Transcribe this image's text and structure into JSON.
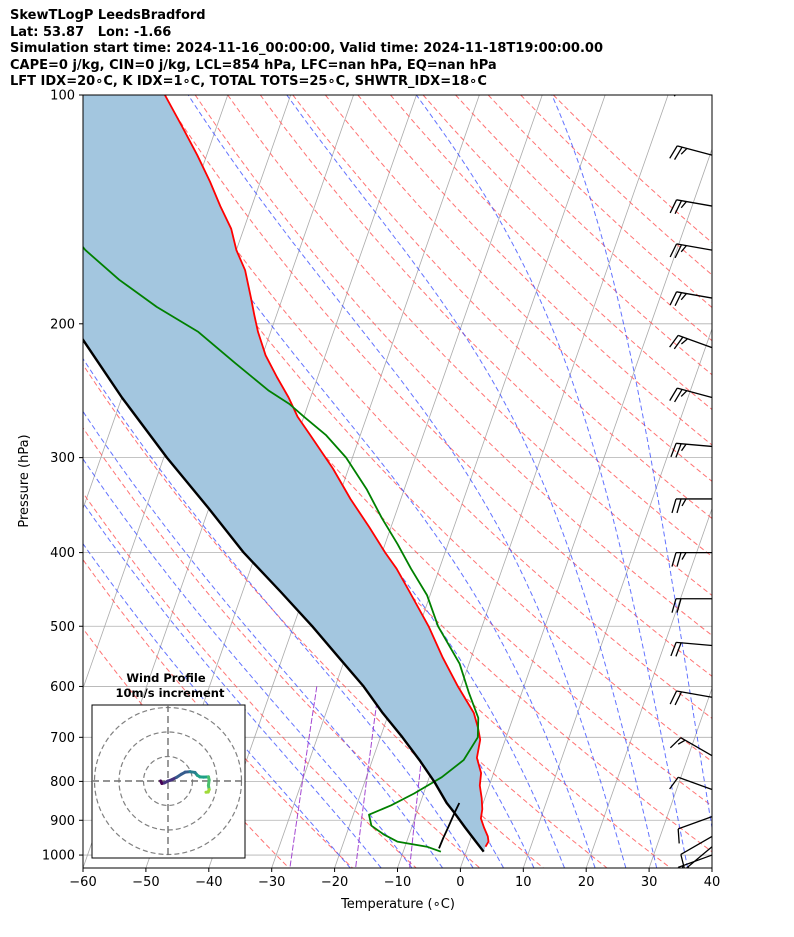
{
  "header": {
    "title": "SkewTLogP LeedsBradford",
    "location": "Lat: 53.87   Lon: -1.66",
    "times": "Simulation start time: 2024-11-16_00:00:00, Valid time: 2024-11-18T19:00:00.00",
    "indices1": "CAPE=0 j/kg, CIN=0 j/kg, LCL=854 hPa, LFC=nan hPa, EQ=nan hPa",
    "indices2": "LFT IDX=20∘C, K IDX=1∘C, TOTAL TOTS=25∘C, SHWTR_IDX=18∘C"
  },
  "chart_data": {
    "type": "line",
    "title": "SkewTLogP LeedsBradford",
    "xlabel": "Temperature (∘C)",
    "ylabel": "Pressure (hPa)",
    "xlim": [
      -60,
      40
    ],
    "ylim": [
      1040,
      100
    ],
    "y_scale": "log",
    "x_ticks": [
      -60,
      -50,
      -40,
      -30,
      -20,
      -10,
      0,
      10,
      20,
      30,
      40
    ],
    "y_ticks": [
      100,
      200,
      300,
      400,
      500,
      600,
      700,
      800,
      900,
      1000
    ],
    "x_tick_labels": [
      "−60",
      "−50",
      "−40",
      "−30",
      "−20",
      "−10",
      "0",
      "10",
      "20",
      "30",
      "40"
    ],
    "y_tick_labels": [
      "100",
      "200",
      "300",
      "400",
      "500",
      "600",
      "700",
      "800",
      "900",
      "1000"
    ],
    "grid": true,
    "colors": {
      "temperature": "#ff0000",
      "dewpoint": "#008000",
      "parcel": "#000000",
      "cape_fill": "#a3c6df",
      "dry_adiabat": "#ff5a5a",
      "moist_adiabat": "#3c50ff",
      "mixing_ratio": "#9932cc",
      "isotherm": "#aaaaaa"
    },
    "series": [
      {
        "key": "temperature",
        "p": [
          975,
          960,
          945,
          920,
          895,
          870,
          842,
          810,
          780,
          745,
          705,
          680,
          650,
          600,
          550,
          500,
          450,
          420,
          400,
          370,
          340,
          310,
          280,
          265,
          250,
          235,
          220,
          205,
          195,
          185,
          170,
          160,
          150,
          140,
          130,
          120,
          110,
          100
        ],
        "t": [
          2.8,
          3.0,
          2.6,
          1.5,
          0.5,
          0.2,
          -0.5,
          -1.5,
          -2.0,
          -3.5,
          -4.0,
          -5.0,
          -6.5,
          -10.5,
          -14.5,
          -18.5,
          -23.5,
          -26.8,
          -29.5,
          -33.5,
          -38.0,
          -42.5,
          -48.0,
          -51.0,
          -53.5,
          -56.5,
          -59.5,
          -62.0,
          -63.5,
          -65.0,
          -67.5,
          -70.0,
          -72.0,
          -75.0,
          -78.0,
          -81.5,
          -85.5,
          -90.0
        ]
      },
      {
        "key": "dewpoint",
        "p": [
          990,
          975,
          960,
          940,
          915,
          885,
          860,
          830,
          790,
          750,
          700,
          660,
          610,
          560,
          500,
          455,
          420,
          390,
          360,
          330,
          300,
          280,
          265,
          255,
          245,
          225,
          205,
          190,
          175,
          160,
          150,
          140,
          130,
          120,
          110,
          100
        ],
        "t": [
          -4.0,
          -6.5,
          -11.5,
          -14.0,
          -16.5,
          -17.5,
          -14.5,
          -11.5,
          -8.0,
          -5.5,
          -4.5,
          -5.5,
          -8.5,
          -11.5,
          -17.0,
          -20.5,
          -24.5,
          -28.0,
          -32.0,
          -36.0,
          -41.0,
          -45.5,
          -50.0,
          -53.0,
          -57.0,
          -64.0,
          -71.5,
          -79.5,
          -87.0,
          -94.0,
          -98.0,
          -100.0,
          -101.0,
          -102.0,
          -104.0,
          -106.0
        ]
      },
      {
        "key": "parcel",
        "p": [
          990,
          960,
          920,
          880,
          854,
          800,
          750,
          700,
          650,
          600,
          550,
          500,
          450,
          400,
          350,
          300,
          250,
          200,
          175,
          150,
          125,
          100
        ],
        "t": [
          2.8,
          1.0,
          -1.5,
          -4.0,
          -5.8,
          -9.0,
          -12.5,
          -16.5,
          -21.0,
          -25.5,
          -31.0,
          -37.0,
          -44.0,
          -52.0,
          -60.0,
          -69.5,
          -80.0,
          -92.0,
          -98.0,
          -106.0,
          -114.0,
          -124.0
        ]
      },
      {
        "key": "parcel-lower",
        "p": [
          980,
          950,
          920,
          880,
          854
        ],
        "t": [
          -4.5,
          -4.4,
          -4.2,
          -4.0,
          -3.8
        ]
      }
    ],
    "wind_barbs": [
      {
        "p": 100,
        "speed": 25,
        "dir": 290
      },
      {
        "p": 120,
        "speed": 25,
        "dir": 285
      },
      {
        "p": 140,
        "speed": 25,
        "dir": 280
      },
      {
        "p": 160,
        "speed": 25,
        "dir": 280
      },
      {
        "p": 185,
        "speed": 25,
        "dir": 280
      },
      {
        "p": 215,
        "speed": 25,
        "dir": 290
      },
      {
        "p": 250,
        "speed": 25,
        "dir": 285
      },
      {
        "p": 290,
        "speed": 25,
        "dir": 275
      },
      {
        "p": 340,
        "speed": 25,
        "dir": 270
      },
      {
        "p": 400,
        "speed": 25,
        "dir": 270
      },
      {
        "p": 460,
        "speed": 20,
        "dir": 270
      },
      {
        "p": 530,
        "speed": 20,
        "dir": 275
      },
      {
        "p": 620,
        "speed": 20,
        "dir": 280
      },
      {
        "p": 740,
        "speed": 15,
        "dir": 300
      },
      {
        "p": 820,
        "speed": 10,
        "dir": 290
      },
      {
        "p": 890,
        "speed": 10,
        "dir": 250
      },
      {
        "p": 945,
        "speed": 10,
        "dir": 240
      },
      {
        "p": 975,
        "speed": 15,
        "dir": 230
      },
      {
        "p": 1000,
        "speed": 15,
        "dir": 250
      }
    ],
    "hodograph": {
      "title": "Wind Profile",
      "subtitle": "10m/s increment",
      "rings": [
        10,
        20,
        30
      ],
      "points": [
        [
          -3,
          0
        ],
        [
          -2.5,
          -1
        ],
        [
          -1.5,
          -0.8
        ],
        [
          0,
          0
        ],
        [
          1.5,
          0.5
        ],
        [
          3.5,
          1.5
        ],
        [
          5.5,
          2.8
        ],
        [
          7,
          3.6
        ],
        [
          9,
          3.8
        ],
        [
          11,
          3.5
        ],
        [
          12,
          2.3
        ],
        [
          13,
          1.7
        ],
        [
          14.5,
          1.6
        ],
        [
          16.5,
          1.7
        ],
        [
          16.8,
          0.4
        ],
        [
          16.5,
          -1.8
        ],
        [
          16.8,
          -3.5
        ],
        [
          16.4,
          -4.5
        ],
        [
          15.5,
          -4.6
        ]
      ]
    }
  }
}
